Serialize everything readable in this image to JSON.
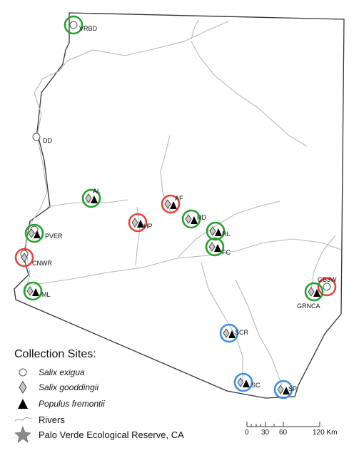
{
  "sites": [
    {
      "code": "VRBD",
      "ring": "green",
      "species": [
        "salix_exigua"
      ]
    },
    {
      "code": "DD",
      "ring": "none",
      "species": [
        "salix_exigua"
      ]
    },
    {
      "code": "AL",
      "ring": "green",
      "species": [
        "salix_gooddingii",
        "populus_fremontii"
      ]
    },
    {
      "code": "AF",
      "ring": "red",
      "species": [
        "salix_gooddingii",
        "populus_fremontii"
      ]
    },
    {
      "code": "HP",
      "ring": "red",
      "species": [
        "salix_gooddingii",
        "populus_fremontii"
      ]
    },
    {
      "code": "HD",
      "ring": "green",
      "species": [
        "salix_gooddingii",
        "populus_fremontii"
      ]
    },
    {
      "code": "RL",
      "ring": "green",
      "species": [
        "salix_gooddingii",
        "populus_fremontii"
      ]
    },
    {
      "code": "FC",
      "ring": "green",
      "species": [
        "salix_gooddingii",
        "populus_fremontii"
      ]
    },
    {
      "code": "PVER",
      "ring": "green",
      "species": [
        "salix_exigua",
        "salix_gooddingii",
        "populus_fremontii"
      ]
    },
    {
      "code": "CNWR",
      "ring": "red",
      "species": [
        "salix_exigua",
        "salix_gooddingii"
      ]
    },
    {
      "code": "ML",
      "ring": "green",
      "species": [
        "salix_gooddingii",
        "populus_fremontii"
      ]
    },
    {
      "code": "GB3W",
      "ring": "red",
      "species": [
        "salix_exigua"
      ]
    },
    {
      "code": "GRNCA",
      "ring": "green",
      "species": [
        "salix_gooddingii",
        "populus_fremontii"
      ]
    },
    {
      "code": "SCR",
      "ring": "blue",
      "species": [
        "salix_gooddingii",
        "populus_fremontii"
      ]
    },
    {
      "code": "SC",
      "ring": "blue",
      "species": [
        "salix_gooddingii",
        "populus_fremontii"
      ]
    },
    {
      "code": "SP",
      "ring": "blue",
      "species": [
        "salix_gooddingii",
        "populus_fremontii"
      ]
    }
  ],
  "ring_colors": {
    "green": "#21a22a",
    "red": "#e8443a",
    "blue": "#3b8fe0"
  },
  "legend": {
    "title": "Collection Sites:",
    "salix_exigua": "Salix exigua",
    "salix_gooddingii": "Salix gooddingii",
    "populus_fremontii": "Populus fremontii",
    "rivers": "Rivers",
    "reserve": "Palo Verde Ecological Reserve, CA"
  },
  "scale": {
    "ticks": [
      "0",
      "30",
      "60",
      "120 Km"
    ]
  }
}
